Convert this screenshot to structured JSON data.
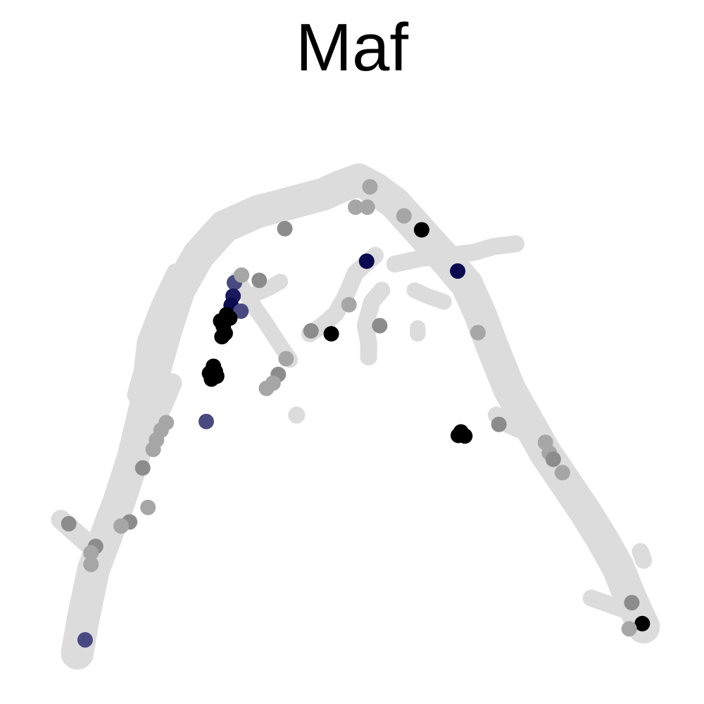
{
  "chart_data": {
    "type": "scatter",
    "title": "Maf",
    "xlabel": "",
    "ylabel": "",
    "axes_visible": false,
    "grid": false,
    "legend": "none",
    "xlim": [
      0,
      100
    ],
    "ylim": [
      0,
      100
    ],
    "colors": {
      "background_cells": "#dcdcdc",
      "low": "#a6a6a6",
      "mid": "#8c8c8c",
      "blue_light": "#4a4a82",
      "blue": "#1a1a5e",
      "navy": "#0a0a50",
      "high": "#000000"
    },
    "background_path": [
      [
        7.5,
        4.5
      ],
      [
        8.5,
        11
      ],
      [
        10,
        19
      ],
      [
        12,
        25
      ],
      [
        14,
        31
      ],
      [
        16,
        38
      ],
      [
        17.5,
        45
      ],
      [
        19,
        52
      ],
      [
        21,
        60
      ],
      [
        23,
        67
      ],
      [
        26,
        73
      ],
      [
        30,
        78
      ],
      [
        35,
        80.5
      ],
      [
        40,
        82
      ],
      [
        45,
        83.5
      ],
      [
        48,
        85
      ],
      [
        50.5,
        86
      ],
      [
        53,
        84.5
      ],
      [
        56,
        82
      ],
      [
        60,
        77
      ],
      [
        64,
        72
      ],
      [
        67,
        68
      ],
      [
        69,
        63
      ],
      [
        71,
        57
      ],
      [
        73.5,
        50
      ],
      [
        76.5,
        44
      ],
      [
        79,
        39
      ],
      [
        82,
        34
      ],
      [
        85,
        29
      ],
      [
        87.5,
        24.5
      ],
      [
        90,
        19.5
      ],
      [
        92,
        14
      ],
      [
        94,
        9
      ]
    ],
    "background_branches": [
      {
        "points": [
          [
            11.5,
            24
          ],
          [
            13.5,
            30
          ],
          [
            16,
            36
          ],
          [
            18.5,
            42
          ],
          [
            20.5,
            47
          ],
          [
            22,
            51
          ]
        ],
        "width": 3
      },
      {
        "points": [
          [
            5,
            27.5
          ],
          [
            7,
            25.5
          ],
          [
            9,
            23.5
          ],
          [
            12,
            22
          ]
        ],
        "width": 3
      },
      {
        "points": [
          [
            16.5,
            49
          ],
          [
            17.5,
            53
          ],
          [
            18,
            58
          ],
          [
            20,
            64
          ],
          [
            22.5,
            70
          ]
        ],
        "width": 2.8
      },
      {
        "points": [
          [
            32,
            69
          ],
          [
            34,
            65
          ],
          [
            36.5,
            61
          ],
          [
            38.5,
            57.5
          ],
          [
            40,
            55
          ]
        ],
        "width": 2.4
      },
      {
        "points": [
          [
            43,
            59.5
          ],
          [
            45,
            61
          ],
          [
            47,
            63
          ],
          [
            48.5,
            66
          ],
          [
            50,
            70
          ],
          [
            53,
            73
          ]
        ],
        "width": 2.6
      },
      {
        "points": [
          [
            52,
            55.5
          ],
          [
            52,
            58
          ],
          [
            51.5,
            61
          ],
          [
            52.5,
            65
          ],
          [
            54,
            67
          ]
        ],
        "width": 2.6
      },
      {
        "points": [
          [
            56,
            71.5
          ],
          [
            60,
            72.5
          ],
          [
            64,
            73
          ],
          [
            68,
            73.5
          ],
          [
            71,
            74.5
          ],
          [
            74.5,
            75
          ]
        ],
        "width": 2.6
      },
      {
        "points": [
          [
            59,
            67
          ],
          [
            61,
            66
          ],
          [
            63.5,
            65
          ]
        ],
        "width": 2.4
      },
      {
        "points": [
          [
            35,
            66.5
          ],
          [
            37,
            67.5
          ],
          [
            38.5,
            68.5
          ]
        ],
        "width": 2.4
      },
      {
        "points": [
          [
            86,
            14
          ],
          [
            88.5,
            13
          ],
          [
            91,
            12
          ]
        ],
        "width": 2.6
      },
      {
        "points": [
          [
            93.5,
            22
          ],
          [
            94,
            20.5
          ]
        ],
        "width": 2.6
      },
      {
        "points": [
          [
            41,
            45.5
          ]
        ],
        "width": 2.6
      },
      {
        "points": [
          [
            59.5,
            60.5
          ],
          [
            59.5,
            59.5
          ]
        ],
        "width": 2.4
      },
      {
        "points": [
          [
            71.5,
            45.5
          ],
          [
            73,
            44
          ],
          [
            75,
            43
          ]
        ],
        "width": 2.6
      },
      {
        "points": [
          [
            52,
            85
          ],
          [
            53.5,
            84
          ],
          [
            55,
            84.5
          ]
        ],
        "width": 2.6
      }
    ],
    "points": [
      {
        "x": 52.2,
        "y": 84.8,
        "level": "low"
      },
      {
        "x": 50.0,
        "y": 81.3,
        "level": "low"
      },
      {
        "x": 51.8,
        "y": 81.3,
        "level": "low"
      },
      {
        "x": 57.4,
        "y": 79.8,
        "level": "low"
      },
      {
        "x": 39.2,
        "y": 77.6,
        "level": "mid"
      },
      {
        "x": 60.1,
        "y": 77.4,
        "level": "high"
      },
      {
        "x": 51.7,
        "y": 72.0,
        "level": "navy"
      },
      {
        "x": 65.6,
        "y": 70.3,
        "level": "navy"
      },
      {
        "x": 35.3,
        "y": 68.7,
        "level": "mid"
      },
      {
        "x": 31.5,
        "y": 68.3,
        "level": "blue_light"
      },
      {
        "x": 32.6,
        "y": 69.6,
        "level": "low"
      },
      {
        "x": 31.3,
        "y": 66.0,
        "level": "blue"
      },
      {
        "x": 31.0,
        "y": 64.4,
        "level": "navy"
      },
      {
        "x": 32.5,
        "y": 63.4,
        "level": "blue_light"
      },
      {
        "x": 30.3,
        "y": 62.8,
        "level": "high"
      },
      {
        "x": 29.4,
        "y": 61.7,
        "level": "high"
      },
      {
        "x": 30.8,
        "y": 62.2,
        "level": "high"
      },
      {
        "x": 29.8,
        "y": 60.8,
        "level": "high"
      },
      {
        "x": 30.1,
        "y": 59.6,
        "level": "high"
      },
      {
        "x": 29.6,
        "y": 59.0,
        "level": "high"
      },
      {
        "x": 49.0,
        "y": 64.5,
        "level": "low"
      },
      {
        "x": 53.7,
        "y": 60.9,
        "level": "mid"
      },
      {
        "x": 43.2,
        "y": 60.0,
        "level": "mid"
      },
      {
        "x": 46.3,
        "y": 59.5,
        "level": "high"
      },
      {
        "x": 68.7,
        "y": 59.7,
        "level": "low"
      },
      {
        "x": 39.4,
        "y": 55.2,
        "level": "low"
      },
      {
        "x": 28.3,
        "y": 53.9,
        "level": "high"
      },
      {
        "x": 28.6,
        "y": 53.0,
        "level": "high"
      },
      {
        "x": 28.8,
        "y": 52.2,
        "level": "high"
      },
      {
        "x": 27.7,
        "y": 52.7,
        "level": "high"
      },
      {
        "x": 28.0,
        "y": 51.7,
        "level": "high"
      },
      {
        "x": 38.2,
        "y": 52.5,
        "level": "mid"
      },
      {
        "x": 37.4,
        "y": 51.0,
        "level": "low"
      },
      {
        "x": 36.4,
        "y": 50.1,
        "level": "low"
      },
      {
        "x": 27.2,
        "y": 44.4,
        "level": "blue_light"
      },
      {
        "x": 21.1,
        "y": 44.2,
        "level": "low"
      },
      {
        "x": 20.3,
        "y": 42.9,
        "level": "low"
      },
      {
        "x": 19.6,
        "y": 41.2,
        "level": "low"
      },
      {
        "x": 19.1,
        "y": 39.6,
        "level": "low"
      },
      {
        "x": 17.5,
        "y": 36.4,
        "level": "mid"
      },
      {
        "x": 66.1,
        "y": 42.6,
        "level": "high"
      },
      {
        "x": 66.7,
        "y": 41.9,
        "level": "high"
      },
      {
        "x": 65.7,
        "y": 42.0,
        "level": "high"
      },
      {
        "x": 71.9,
        "y": 43.9,
        "level": "mid"
      },
      {
        "x": 79.0,
        "y": 40.8,
        "level": "low"
      },
      {
        "x": 79.6,
        "y": 39.0,
        "level": "low"
      },
      {
        "x": 80.2,
        "y": 37.9,
        "level": "mid"
      },
      {
        "x": 81.6,
        "y": 35.6,
        "level": "low"
      },
      {
        "x": 18.3,
        "y": 29.6,
        "level": "low"
      },
      {
        "x": 6.2,
        "y": 26.8,
        "level": "mid"
      },
      {
        "x": 15.5,
        "y": 27.1,
        "level": "mid"
      },
      {
        "x": 14.2,
        "y": 26.4,
        "level": "low"
      },
      {
        "x": 10.3,
        "y": 22.9,
        "level": "mid"
      },
      {
        "x": 9.6,
        "y": 21.8,
        "level": "low"
      },
      {
        "x": 9.6,
        "y": 19.8,
        "level": "low"
      },
      {
        "x": 92.2,
        "y": 13.2,
        "level": "mid"
      },
      {
        "x": 93.8,
        "y": 9.6,
        "level": "high"
      },
      {
        "x": 91.8,
        "y": 8.7,
        "level": "low"
      },
      {
        "x": 8.7,
        "y": 6.8,
        "level": "blue_light"
      }
    ]
  }
}
